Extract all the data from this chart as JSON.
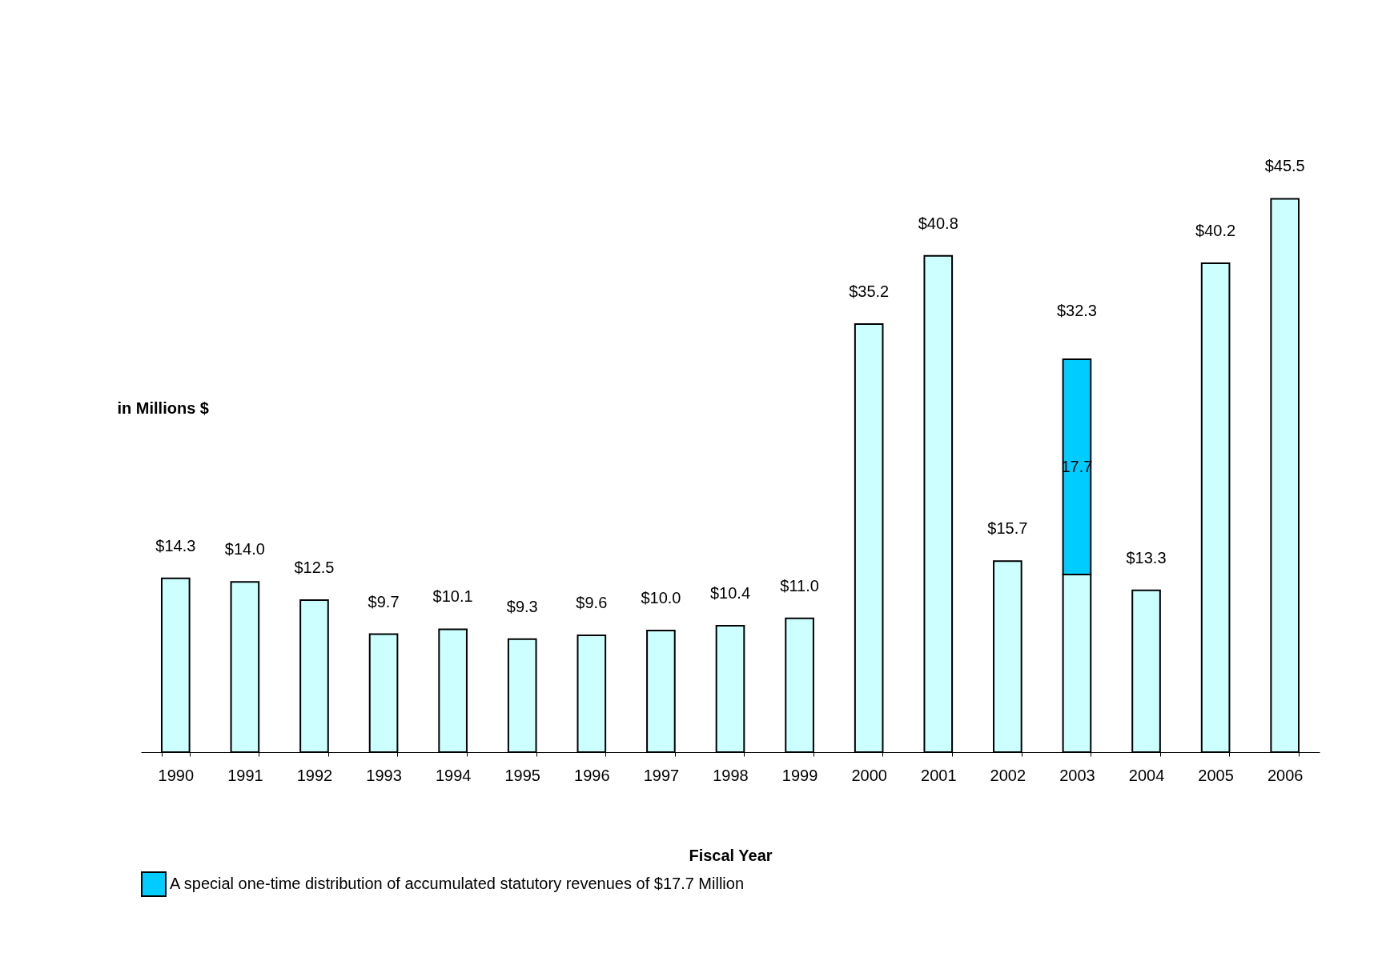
{
  "chart_data": {
    "type": "bar",
    "stacked": true,
    "xlabel": "Fiscal Year",
    "ylabel": "in Millions $",
    "legend": "bottom",
    "categories": [
      "1990",
      "1991",
      "1992",
      "1993",
      "1994",
      "1995",
      "1996",
      "1997",
      "1998",
      "1999",
      "2000",
      "2001",
      "2002",
      "2003",
      "2004",
      "2005",
      "2006"
    ],
    "series": [
      {
        "color": "#ccffff",
        "values": [
          14.3,
          14.0,
          12.5,
          9.7,
          10.1,
          9.3,
          9.6,
          10.0,
          10.4,
          11.0,
          35.2,
          40.8,
          15.7,
          14.6,
          13.3,
          40.2,
          45.5
        ],
        "value_labels": [
          "$14.3",
          "$14.0",
          "$12.5",
          "$9.7",
          "$10.1",
          "$9.3",
          "$9.6",
          "$10.0",
          "$10.4",
          "$11.0",
          "$35.2",
          "$40.8",
          "$15.7",
          null,
          "$13.3",
          "$40.2",
          "$45.5"
        ]
      },
      {
        "name": "A special one-time distribution of accumulated statutory revenues of $17.7 Million",
        "color": "#00ccff",
        "values": [
          null,
          null,
          null,
          null,
          null,
          null,
          null,
          null,
          null,
          null,
          null,
          null,
          null,
          17.7,
          null,
          null,
          null
        ],
        "value_labels": [
          null,
          null,
          null,
          null,
          null,
          null,
          null,
          null,
          null,
          null,
          null,
          null,
          null,
          "17.7",
          null,
          null,
          null
        ]
      }
    ],
    "totals": [
      null,
      null,
      null,
      null,
      null,
      null,
      null,
      null,
      null,
      null,
      null,
      null,
      null,
      "$32.3",
      null,
      null,
      null
    ]
  }
}
